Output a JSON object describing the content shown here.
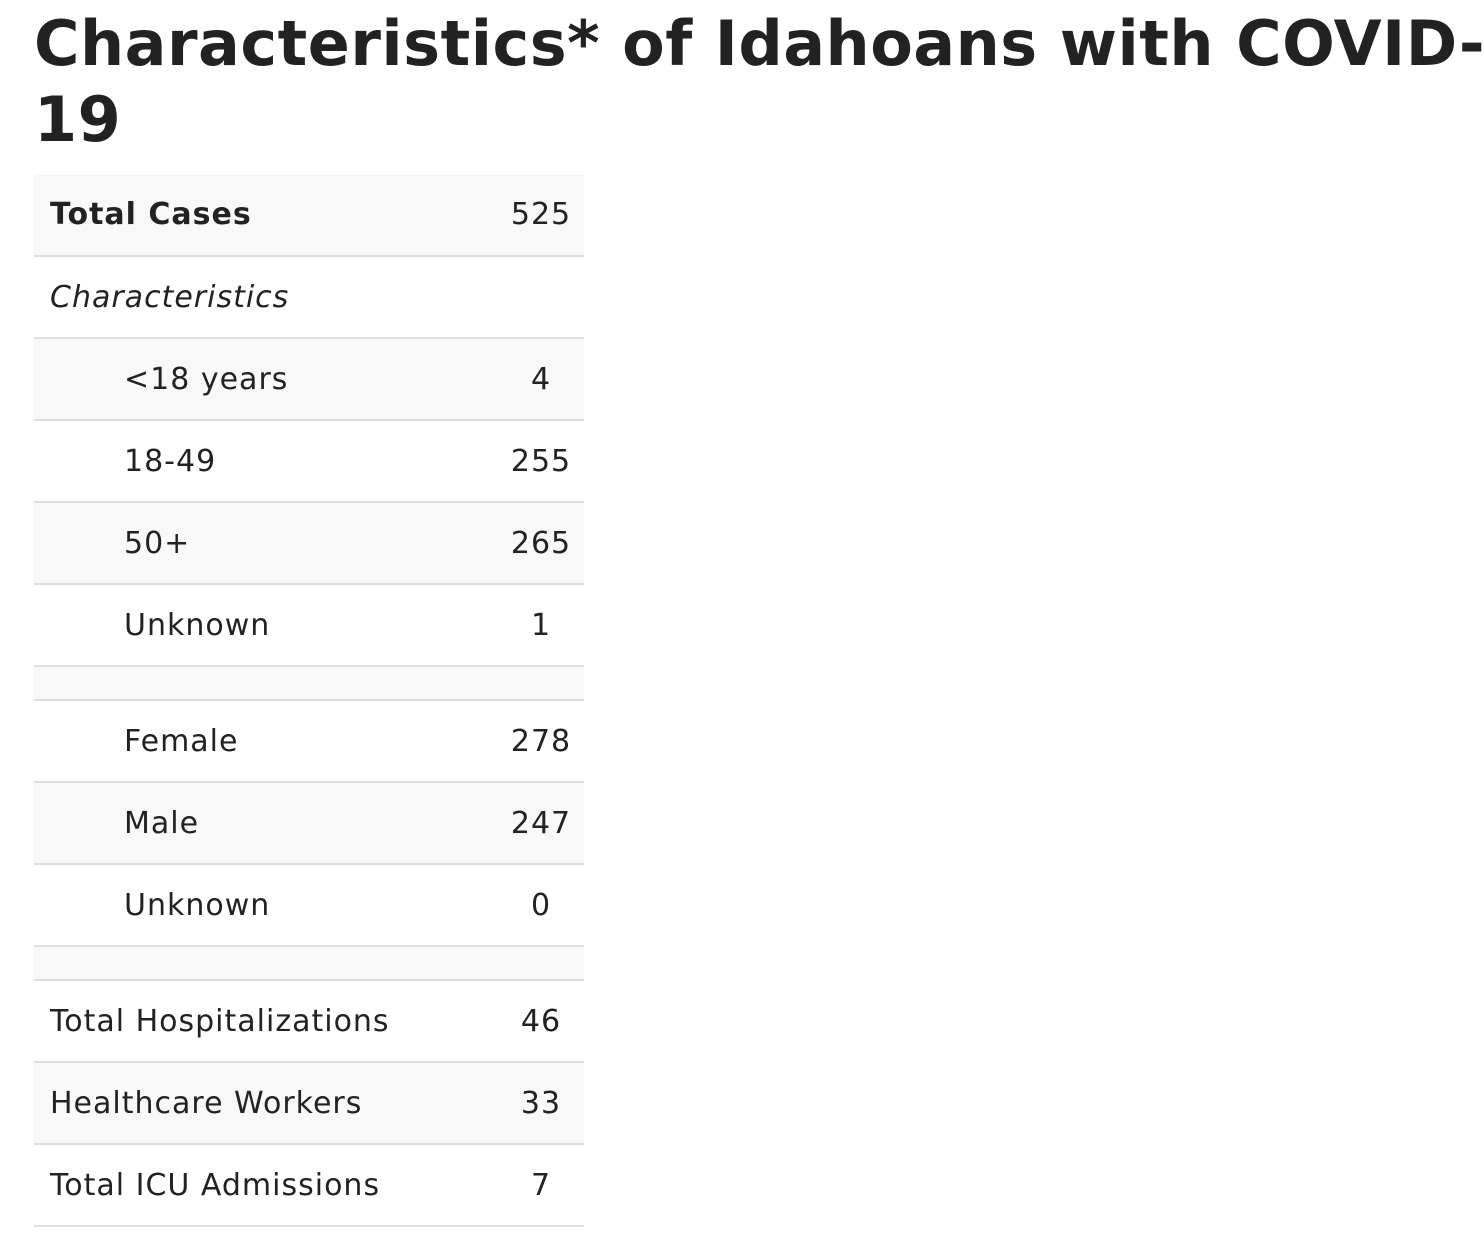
{
  "title": {
    "line1": "Characteristics* of Idahoans with COVID-",
    "line2": "19"
  },
  "table": {
    "total_cases": {
      "label": "Total Cases",
      "value": "525"
    },
    "section_label": "Characteristics",
    "age_groups": [
      {
        "label": "<18 years",
        "value": "4"
      },
      {
        "label": "18-49",
        "value": "255"
      },
      {
        "label": "50+",
        "value": "265"
      },
      {
        "label": "Unknown",
        "value": "1"
      }
    ],
    "sex": [
      {
        "label": "Female",
        "value": "278"
      },
      {
        "label": "Male",
        "value": "247"
      },
      {
        "label": "Unknown",
        "value": "0"
      }
    ],
    "totals": [
      {
        "label": "Total Hospitalizations",
        "value": "46"
      },
      {
        "label": "Healthcare Workers",
        "value": "33"
      },
      {
        "label": "Total ICU Admissions",
        "value": "7"
      }
    ]
  },
  "colors": {
    "text": "#222222",
    "row_shade": "#f8f8f8",
    "row_border": "#dedede",
    "background": "#ffffff"
  }
}
